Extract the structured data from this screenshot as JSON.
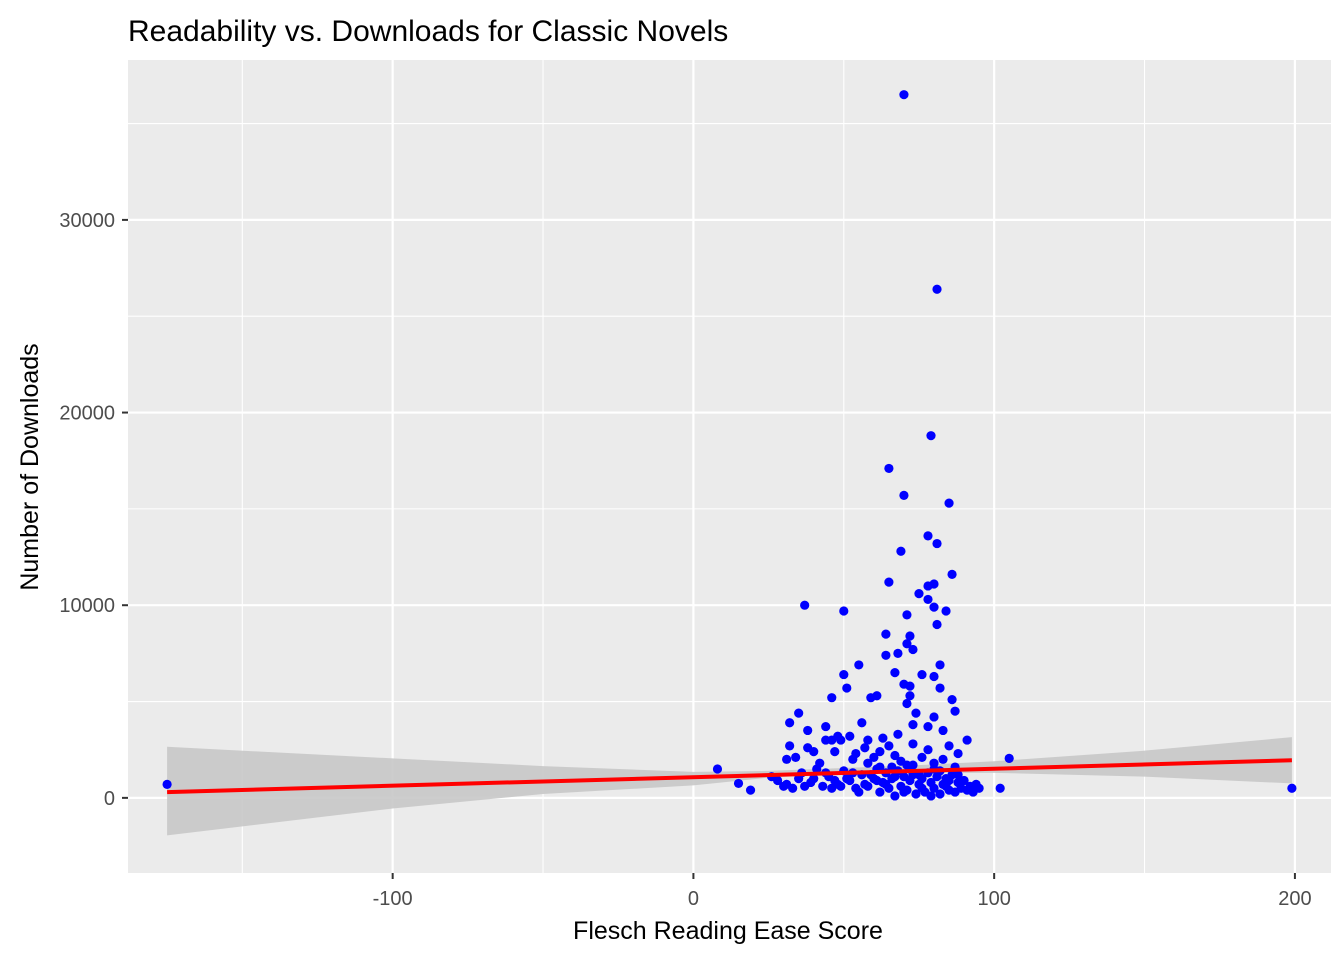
{
  "chart_data": {
    "type": "scatter",
    "title": "Readability vs. Downloads for Classic Novels",
    "xlabel": "Flesch Reading Ease Score",
    "ylabel": "Number of Downloads",
    "xlim": [
      -188,
      212
    ],
    "ylim": [
      -3900,
      38300
    ],
    "x_ticks": [
      -100,
      0,
      100,
      200
    ],
    "x_tick_labels": [
      "-100",
      "0",
      "100",
      "200"
    ],
    "y_ticks": [
      0,
      10000,
      20000,
      30000
    ],
    "y_tick_labels": [
      "0",
      "10000",
      "20000",
      "30000"
    ],
    "grid": true,
    "background": "#ebebeb",
    "point_color": "#0000ff",
    "fit_line_color": "#ff0000",
    "confidence_band_color": "#c8c8c8",
    "fit_line": {
      "x": [
        -175,
        199
      ],
      "y": [
        300,
        1950
      ]
    },
    "confidence_band": {
      "x": [
        -175,
        -100,
        -50,
        0,
        25,
        50,
        75,
        100,
        150,
        199
      ],
      "upper": [
        2650,
        2050,
        1650,
        1350,
        1400,
        1550,
        1700,
        1900,
        2450,
        3150
      ],
      "lower": [
        -1950,
        -550,
        200,
        650,
        1050,
        1250,
        1300,
        1300,
        1100,
        750
      ]
    },
    "series": [
      {
        "values": [
          [
            -175,
            700
          ],
          [
            199,
            500
          ],
          [
            105,
            2050
          ],
          [
            102,
            500
          ],
          [
            8,
            1500
          ],
          [
            15,
            750
          ],
          [
            19,
            400
          ],
          [
            70,
            36500
          ],
          [
            81,
            26400
          ],
          [
            79,
            18800
          ],
          [
            65,
            17100
          ],
          [
            70,
            15700
          ],
          [
            85,
            15300
          ],
          [
            78,
            13600
          ],
          [
            81,
            13200
          ],
          [
            69,
            12800
          ],
          [
            86,
            11600
          ],
          [
            65,
            11200
          ],
          [
            78,
            11000
          ],
          [
            80,
            11100
          ],
          [
            75,
            10600
          ],
          [
            78,
            10300
          ],
          [
            37,
            10000
          ],
          [
            50,
            9700
          ],
          [
            80,
            9900
          ],
          [
            84,
            9700
          ],
          [
            71,
            9500
          ],
          [
            81,
            9000
          ],
          [
            64,
            8500
          ],
          [
            72,
            8400
          ],
          [
            71,
            8000
          ],
          [
            73,
            7700
          ],
          [
            68,
            7500
          ],
          [
            64,
            7400
          ],
          [
            55,
            6900
          ],
          [
            82,
            6900
          ],
          [
            67,
            6500
          ],
          [
            76,
            6400
          ],
          [
            80,
            6300
          ],
          [
            50,
            6400
          ],
          [
            70,
            5900
          ],
          [
            72,
            5800
          ],
          [
            51,
            5700
          ],
          [
            82,
            5700
          ],
          [
            46,
            5200
          ],
          [
            59,
            5200
          ],
          [
            72,
            5300
          ],
          [
            61,
            5300
          ],
          [
            86,
            5100
          ],
          [
            71,
            4900
          ],
          [
            35,
            4400
          ],
          [
            87,
            4500
          ],
          [
            74,
            4400
          ],
          [
            80,
            4200
          ],
          [
            32,
            3900
          ],
          [
            44,
            3700
          ],
          [
            56,
            3900
          ],
          [
            73,
            3800
          ],
          [
            78,
            3700
          ],
          [
            38,
            3500
          ],
          [
            83,
            3500
          ],
          [
            48,
            3200
          ],
          [
            52,
            3200
          ],
          [
            63,
            3100
          ],
          [
            68,
            3300
          ],
          [
            44,
            3000
          ],
          [
            46,
            3000
          ],
          [
            49,
            3000
          ],
          [
            58,
            3000
          ],
          [
            91,
            3000
          ],
          [
            32,
            2700
          ],
          [
            38,
            2600
          ],
          [
            57,
            2600
          ],
          [
            65,
            2700
          ],
          [
            73,
            2800
          ],
          [
            85,
            2700
          ],
          [
            40,
            2400
          ],
          [
            47,
            2400
          ],
          [
            54,
            2300
          ],
          [
            62,
            2400
          ],
          [
            78,
            2500
          ],
          [
            88,
            2300
          ],
          [
            31,
            2000
          ],
          [
            34,
            2100
          ],
          [
            53,
            2000
          ],
          [
            60,
            2100
          ],
          [
            67,
            2200
          ],
          [
            76,
            2100
          ],
          [
            83,
            2000
          ],
          [
            42,
            1800
          ],
          [
            58,
            1800
          ],
          [
            69,
            1900
          ],
          [
            73,
            1700
          ],
          [
            80,
            1800
          ],
          [
            87,
            1600
          ],
          [
            26,
            1100
          ],
          [
            28,
            900
          ],
          [
            31,
            700
          ],
          [
            33,
            500
          ],
          [
            36,
            1300
          ],
          [
            39,
            800
          ],
          [
            41,
            1500
          ],
          [
            43,
            600
          ],
          [
            45,
            1100
          ],
          [
            48,
            700
          ],
          [
            50,
            1400
          ],
          [
            52,
            900
          ],
          [
            54,
            500
          ],
          [
            56,
            1200
          ],
          [
            58,
            600
          ],
          [
            60,
            1000
          ],
          [
            61,
            1500
          ],
          [
            62,
            300
          ],
          [
            63,
            800
          ],
          [
            64,
            1300
          ],
          [
            65,
            500
          ],
          [
            66,
            1000
          ],
          [
            67,
            100
          ],
          [
            68,
            1400
          ],
          [
            69,
            600
          ],
          [
            70,
            1100
          ],
          [
            71,
            400
          ],
          [
            72,
            900
          ],
          [
            73,
            1200
          ],
          [
            74,
            200
          ],
          [
            75,
            700
          ],
          [
            76,
            1000
          ],
          [
            77,
            300
          ],
          [
            78,
            1300
          ],
          [
            79,
            800
          ],
          [
            80,
            500
          ],
          [
            81,
            1100
          ],
          [
            82,
            200
          ],
          [
            83,
            700
          ],
          [
            84,
            1000
          ],
          [
            85,
            400
          ],
          [
            86,
            1200
          ],
          [
            87,
            300
          ],
          [
            88,
            800
          ],
          [
            89,
            500
          ],
          [
            90,
            900
          ],
          [
            91,
            400
          ],
          [
            92,
            600
          ],
          [
            93,
            300
          ],
          [
            94,
            700
          ],
          [
            95,
            500
          ],
          [
            46,
            500
          ],
          [
            51,
            1000
          ],
          [
            55,
            300
          ],
          [
            59,
            1200
          ],
          [
            64,
            700
          ],
          [
            66,
            1600
          ],
          [
            70,
            300
          ],
          [
            72,
            1500
          ],
          [
            75,
            1200
          ],
          [
            79,
            100
          ],
          [
            82,
            1400
          ],
          [
            85,
            900
          ],
          [
            88,
            1200
          ],
          [
            57,
            700
          ],
          [
            53,
            1300
          ],
          [
            49,
            600
          ],
          [
            47,
            900
          ],
          [
            44,
            1300
          ],
          [
            61,
            900
          ],
          [
            67,
            1100
          ],
          [
            71,
            1700
          ],
          [
            76,
            500
          ],
          [
            80,
            1500
          ],
          [
            84,
            600
          ],
          [
            40,
            1000
          ],
          [
            37,
            600
          ],
          [
            35,
            1000
          ],
          [
            30,
            600
          ],
          [
            62,
            1600
          ]
        ]
      }
    ]
  }
}
